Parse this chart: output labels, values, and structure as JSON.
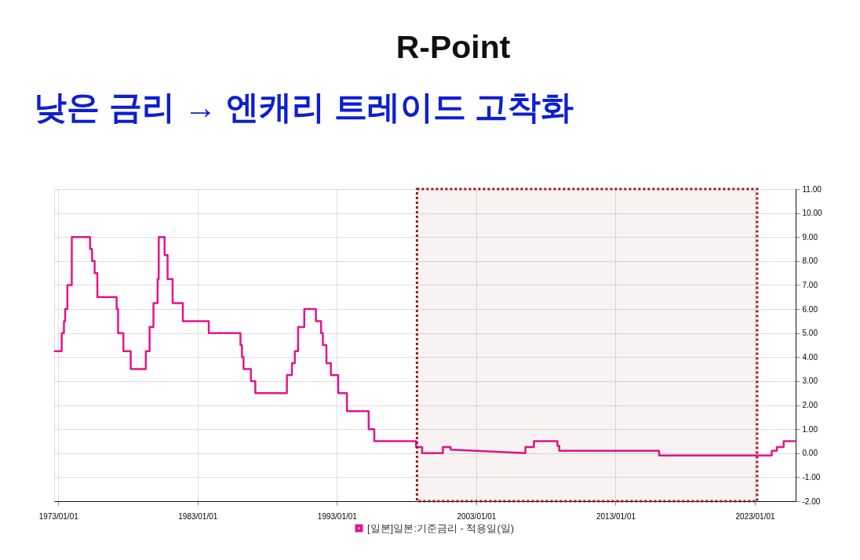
{
  "chart_data": {
    "type": "line",
    "title": "R-Point",
    "subtitle": "낮은 금리 → 엔캐리 트레이드 고착화",
    "x": [
      "1972-10-01",
      "1973-04-01",
      "1973-04-02",
      "1973-05-29",
      "1973-05-30",
      "1973-07-01",
      "1973-07-02",
      "1973-08-28",
      "1973-08-29",
      "1973-12-21",
      "1973-12-22",
      "1975-04-15",
      "1975-04-16",
      "1975-06-06",
      "1975-06-07",
      "1975-08-12",
      "1975-08-13",
      "1975-10-23",
      "1975-10-24",
      "1977-03-11",
      "1977-03-12",
      "1977-04-18",
      "1977-04-19",
      "1977-09-04",
      "1977-09-05",
      "1978-03-15",
      "1978-03-16",
      "1979-04-16",
      "1979-04-17",
      "1979-07-23",
      "1979-07-24",
      "1979-11-01",
      "1979-11-02",
      "1980-02-18",
      "1980-02-19",
      "1980-03-18",
      "1980-03-19",
      "1980-08-19",
      "1980-08-20",
      "1980-11-05",
      "1980-11-06",
      "1981-03-17",
      "1981-03-18",
      "1981-12-10",
      "1981-12-11",
      "1983-10-21",
      "1983-10-22",
      "1986-01-29",
      "1986-01-30",
      "1986-03-09",
      "1986-03-10",
      "1986-04-20",
      "1986-04-21",
      "1986-10-31",
      "1986-11-01",
      "1987-02-22",
      "1987-02-23",
      "1989-05-30",
      "1989-05-31",
      "1989-10-10",
      "1989-10-11",
      "1989-12-24",
      "1989-12-25",
      "1990-03-19",
      "1990-03-20",
      "1990-08-29",
      "1990-08-30",
      "1991-06-30",
      "1991-07-01",
      "1991-11-13",
      "1991-11-14",
      "1991-12-29",
      "1991-12-30",
      "1992-03-31",
      "1992-04-01",
      "1992-07-26",
      "1992-07-27",
      "1993-02-03",
      "1993-02-04",
      "1993-09-20",
      "1993-09-21",
      "1995-04-13",
      "1995-04-14",
      "1995-09-07",
      "1995-09-08",
      "1998-09-08",
      "1998-09-09",
      "1999-02-11",
      "1999-02-12",
      "2000-08-10",
      "2000-08-11",
      "2001-02-28",
      "2001-03-01",
      "2006-07-13",
      "2006-07-14",
      "2007-02-20",
      "2007-02-21",
      "2008-10-30",
      "2008-10-31",
      "2008-12-18",
      "2008-12-19",
      "2016-02-15",
      "2016-02-16",
      "2024-03-18",
      "2024-03-19",
      "2024-07-30",
      "2024-07-31",
      "2025-01-23",
      "2025-01-24",
      "2025-11-10"
    ],
    "series": [
      {
        "name": "[일본]일본:기준금리 - 적용일(일)",
        "color": "#e4148c",
        "values": [
          4.25,
          4.25,
          5,
          5,
          5.5,
          5.5,
          6,
          6,
          7,
          7,
          9,
          9,
          8.5,
          8.5,
          8,
          8,
          7.5,
          7.5,
          6.5,
          6.5,
          6,
          6,
          5,
          5,
          4.25,
          4.25,
          3.5,
          3.5,
          4.25,
          4.25,
          5.25,
          5.25,
          6.25,
          6.25,
          7.25,
          7.25,
          9,
          9,
          8.25,
          8.25,
          7.25,
          7.25,
          6.25,
          6.25,
          5.5,
          5.5,
          5,
          5,
          4.5,
          4.5,
          4,
          4,
          3.5,
          3.5,
          3,
          3,
          2.5,
          2.5,
          3.25,
          3.25,
          3.75,
          3.75,
          4.25,
          4.25,
          5.25,
          5.25,
          6,
          6,
          5.5,
          5.5,
          5,
          5,
          4.5,
          4.5,
          3.75,
          3.75,
          3.25,
          3.25,
          2.5,
          2.5,
          1.75,
          1.75,
          1,
          1,
          0.5,
          0.5,
          0.25,
          0.25,
          0,
          0,
          0.25,
          0.25,
          0.15,
          0,
          0.25,
          0.25,
          0.5,
          0.5,
          0.3,
          0.3,
          0.1,
          0.1,
          -0.1,
          -0.1,
          0.1,
          0.1,
          0.25,
          0.25,
          0.5,
          0.5
        ]
      }
    ],
    "xlim": [
      "1972-09-15",
      "2025-12-05"
    ],
    "xticks": [
      {
        "value": "1973-01-01",
        "label": "1973/01/01"
      },
      {
        "value": "1983-01-01",
        "label": "1983/01/01"
      },
      {
        "value": "1993-01-01",
        "label": "1993/01/01"
      },
      {
        "value": "2003-01-01",
        "label": "2003/01/01"
      },
      {
        "value": "2013-01-01",
        "label": "2013/01/01"
      },
      {
        "value": "2023-01-01",
        "label": "2023/01/01"
      }
    ],
    "ylim": [
      -2,
      11
    ],
    "yticks": [
      {
        "value": -2,
        "label": "-2.00"
      },
      {
        "value": -1,
        "label": "-1.00"
      },
      {
        "value": 0,
        "label": "0.00"
      },
      {
        "value": 1,
        "label": "1.00"
      },
      {
        "value": 2,
        "label": "2.00"
      },
      {
        "value": 3,
        "label": "3.00"
      },
      {
        "value": 4,
        "label": "4.00"
      },
      {
        "value": 5,
        "label": "5.00"
      },
      {
        "value": 6,
        "label": "6.00"
      },
      {
        "value": 7,
        "label": "7.00"
      },
      {
        "value": 8,
        "label": "8.00"
      },
      {
        "value": 9,
        "label": "9.00"
      },
      {
        "value": 10,
        "label": "10.00"
      },
      {
        "value": 11,
        "label": "11.00"
      }
    ],
    "bands": [
      {
        "axis": "x",
        "from": "1998-10-01",
        "to": "2023-03-01",
        "color": "#a01a1a"
      }
    ],
    "grid": true,
    "legend": "bottom"
  }
}
